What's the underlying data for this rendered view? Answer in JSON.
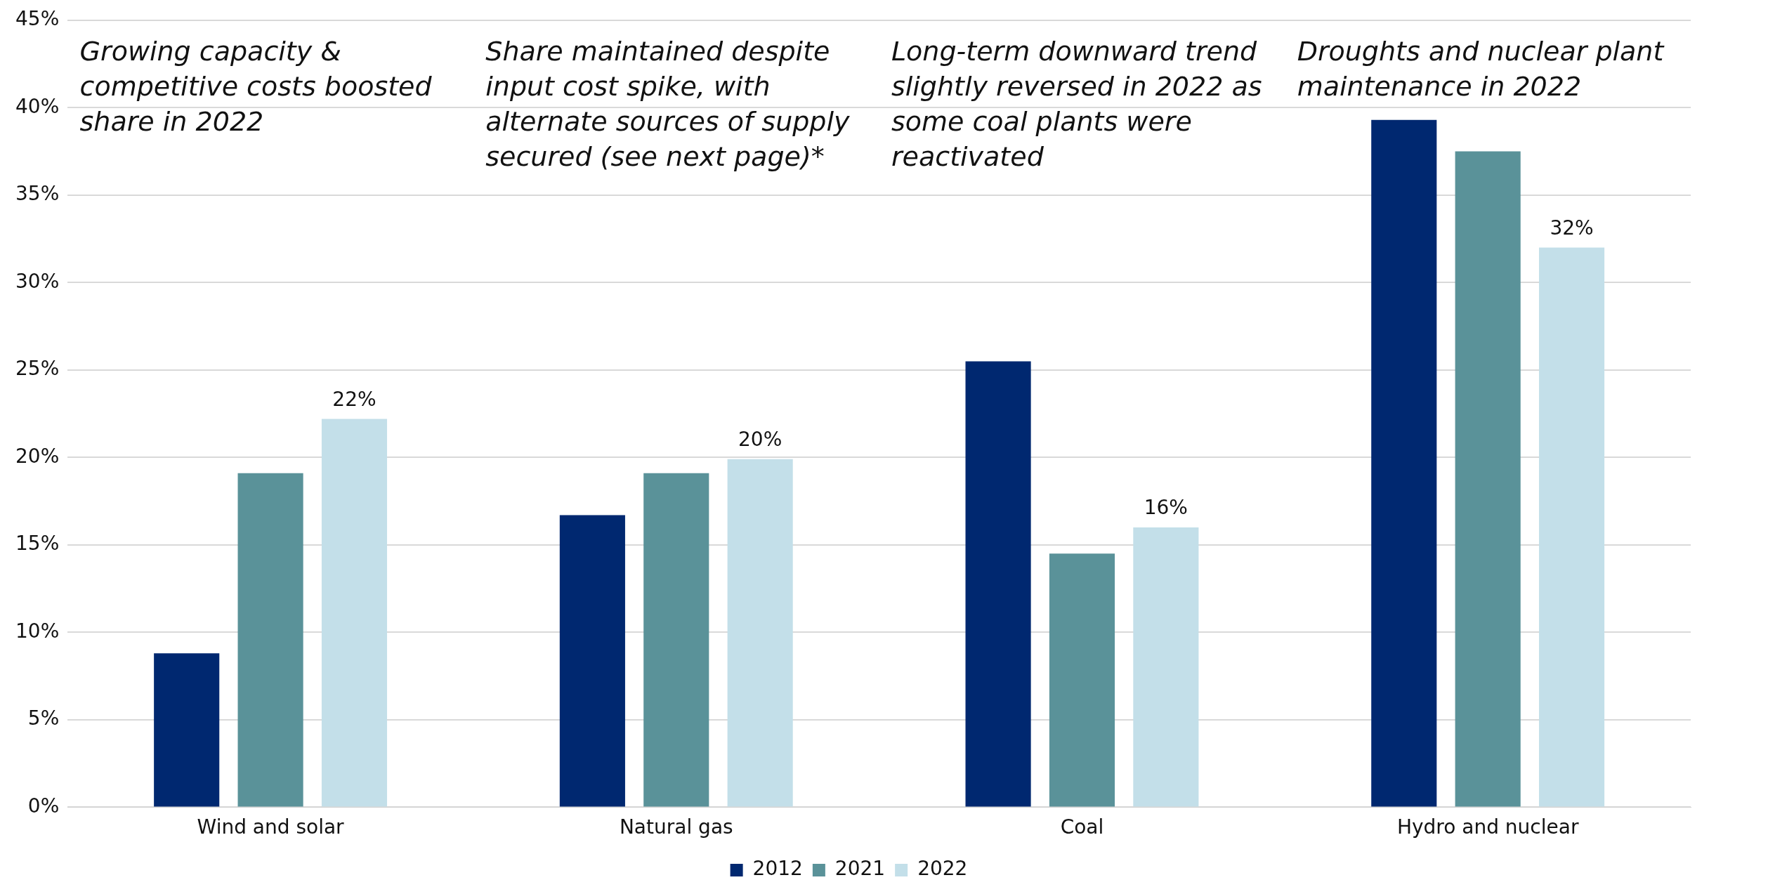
{
  "chart_data": {
    "type": "bar",
    "categories": [
      "Wind and solar",
      "Natural gas",
      "Coal",
      "Hydro and nuclear"
    ],
    "series": [
      {
        "name": "2012",
        "color": "#002870",
        "values": [
          8.8,
          16.7,
          25.5,
          39.3
        ]
      },
      {
        "name": "2021",
        "color": "#5a9299",
        "values": [
          19.1,
          19.1,
          14.5,
          37.5
        ]
      },
      {
        "name": "2022",
        "color": "#c3dfe9",
        "values": [
          22.2,
          19.9,
          16.0,
          32.0
        ],
        "value_labels": [
          "22%",
          "20%",
          "16%",
          "32%"
        ]
      }
    ],
    "ylim": [
      0,
      45
    ],
    "yticks": [
      {
        "value": 0,
        "label": "0%"
      },
      {
        "value": 5,
        "label": "5%"
      },
      {
        "value": 10,
        "label": "10%"
      },
      {
        "value": 15,
        "label": "15%"
      },
      {
        "value": 20,
        "label": "20%"
      },
      {
        "value": 25,
        "label": "25%"
      },
      {
        "value": 30,
        "label": "30%"
      },
      {
        "value": 35,
        "label": "35%"
      },
      {
        "value": 40,
        "label": "40%"
      },
      {
        "value": 45,
        "label": "45%"
      }
    ],
    "grid": "y",
    "legend": "bottom",
    "annotations": [
      "Growing capacity & competitive costs boosted share in 2022",
      "Share maintained despite input cost spike, with alternate sources of supply secured (see next page)*",
      "Long-term downward trend slightly reversed in 2022 as some coal plants were reactivated",
      "Droughts and nuclear plant maintenance in 2022"
    ]
  }
}
